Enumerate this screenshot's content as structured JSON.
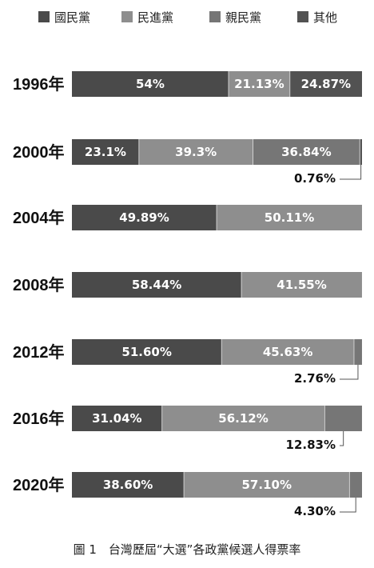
{
  "chart_data": {
    "type": "bar",
    "stacked": true,
    "orientation": "horizontal",
    "normalized": true,
    "legend_position": "top",
    "categories": [
      "1996年",
      "2000年",
      "2004年",
      "2008年",
      "2012年",
      "2016年",
      "2020年"
    ],
    "series": [
      {
        "name": "國民黨",
        "color": "#4a4a4a",
        "values": [
          54,
          23.1,
          49.89,
          58.44,
          51.6,
          31.04,
          38.6
        ],
        "labels": [
          "54%",
          "23.1%",
          "49.89%",
          "58.44%",
          "51.60%",
          "31.04%",
          "38.60%"
        ]
      },
      {
        "name": "民進黨",
        "color": "#8e8e8e",
        "values": [
          21.13,
          39.3,
          50.11,
          41.55,
          45.63,
          56.12,
          57.1
        ],
        "labels": [
          "21.13%",
          "39.3%",
          "50.11%",
          "41.55%",
          "45.63%",
          "56.12%",
          "57.10%"
        ]
      },
      {
        "name": "親民黨",
        "color": "#767676",
        "values": [
          0,
          36.84,
          0,
          0,
          2.76,
          12.83,
          4.3
        ],
        "labels": [
          "",
          "36.84%",
          "",
          "",
          "2.76%",
          "12.83%",
          "4.30%"
        ]
      },
      {
        "name": "其他",
        "color": "#525252",
        "values": [
          24.87,
          0.76,
          0,
          0,
          0,
          0,
          0
        ],
        "labels": [
          "24.87%",
          "0.76%",
          "",
          "",
          "",
          "",
          ""
        ]
      }
    ]
  },
  "caption": "圖 1　台灣歷屆“大選”各政黨候選人得票率"
}
